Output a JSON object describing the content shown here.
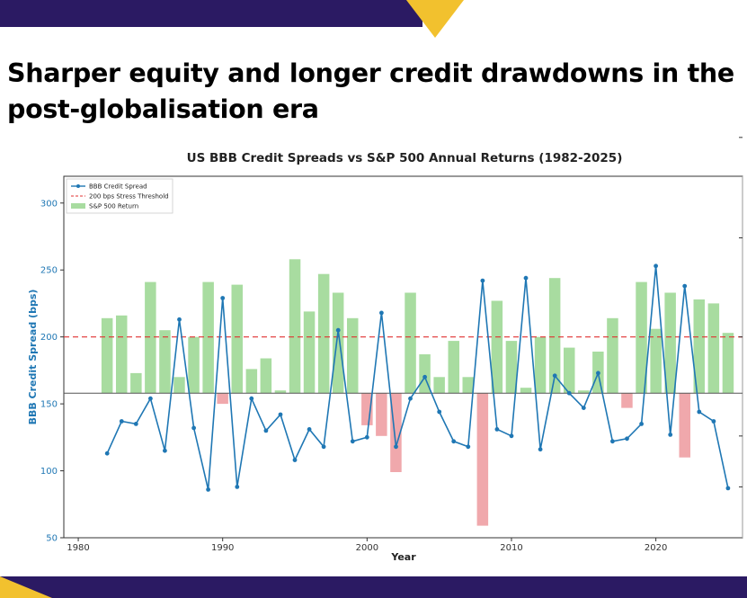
{
  "headline": "Sharper equity and longer credit drawdowns in the post-globalisation era",
  "colors": {
    "brand_navy": "#2b1a63",
    "brand_yellow": "#f2c12e",
    "spread_line": "#1f77b4",
    "threshold": "#e03030",
    "bar_positive": "#a8dca0",
    "bar_negative": "#f0a8ac"
  },
  "chart_data": {
    "type": "bar+line",
    "title": "US BBB Credit Spreads vs S&P 500 Annual Returns (1982-2025)",
    "xlabel": "Year",
    "ylabel": "BBB Credit Spread (bps)",
    "xlim": [
      1979,
      2026
    ],
    "ylim": [
      50,
      320
    ],
    "xticks": [
      1980,
      1990,
      2000,
      2010,
      2020
    ],
    "yticks": [
      50,
      100,
      150,
      200,
      250,
      300
    ],
    "bar_baseline_bps": 158,
    "legend": [
      "BBB Credit Spread",
      "200 bps Stress Threshold",
      "S&P 500 Return"
    ],
    "legend_position": "top-left",
    "threshold": 200,
    "years": [
      1982,
      1983,
      1984,
      1985,
      1986,
      1987,
      1988,
      1989,
      1990,
      1991,
      1992,
      1993,
      1994,
      1995,
      1996,
      1997,
      1998,
      1999,
      2000,
      2001,
      2002,
      2003,
      2004,
      2005,
      2006,
      2007,
      2008,
      2009,
      2010,
      2011,
      2012,
      2013,
      2014,
      2015,
      2016,
      2017,
      2018,
      2019,
      2020,
      2021,
      2022,
      2023,
      2024,
      2025
    ],
    "spread": [
      113,
      137,
      135,
      154,
      115,
      213,
      132,
      86,
      229,
      88,
      154,
      130,
      142,
      108,
      131,
      118,
      205,
      122,
      125,
      218,
      118,
      154,
      170,
      144,
      122,
      118,
      242,
      131,
      126,
      244,
      116,
      171,
      158,
      147,
      173,
      122,
      124,
      135,
      253,
      127,
      238,
      144,
      137,
      87
    ],
    "bar_top": [
      214,
      216,
      173,
      241,
      205,
      170,
      200,
      241,
      150,
      239,
      176,
      184,
      160,
      258,
      219,
      247,
      233,
      214,
      134,
      126,
      99,
      233,
      187,
      170,
      197,
      170,
      59,
      227,
      197,
      162,
      200,
      244,
      192,
      160,
      189,
      214,
      147,
      241,
      206,
      233,
      110,
      228,
      225,
      203
    ]
  }
}
